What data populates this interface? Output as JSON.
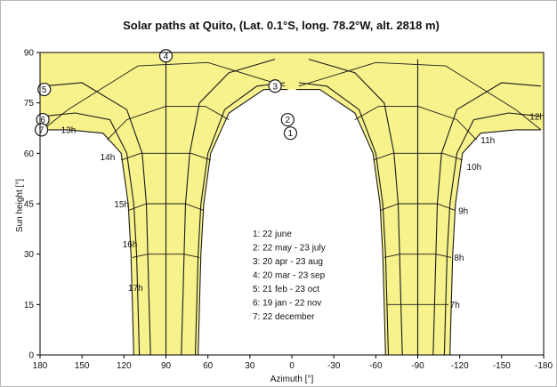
{
  "chart_data": {
    "type": "line",
    "title": "Solar paths at    Quito, (Lat. 0.1°S, long. 78.2°W, alt. 2818 m)",
    "xlabel": "Azimuth [°]",
    "ylabel": "Sun height [°]",
    "xlim": [
      180,
      -180
    ],
    "ylim": [
      0,
      90
    ],
    "x_ticks": [
      180,
      150,
      120,
      90,
      60,
      30,
      0,
      -30,
      -60,
      -90,
      -120,
      -150,
      -180
    ],
    "y_ticks": [
      0,
      15,
      30,
      45,
      60,
      75,
      90
    ],
    "grid": false,
    "legend_position": "center",
    "colors": {
      "fill": "#f7f28b",
      "line": "#1a1a1a"
    },
    "series": [
      {
        "marker": "1",
        "morning": [
          [
            67,
            0
          ],
          [
            66,
            15
          ],
          [
            65,
            30
          ],
          [
            63,
            45
          ],
          [
            58,
            60
          ],
          [
            45,
            72
          ],
          [
            20,
            79
          ],
          [
            3,
            79
          ]
        ],
        "afternoon": [
          [
            -67,
            0
          ],
          [
            -66,
            15
          ],
          [
            -65,
            30
          ],
          [
            -63,
            45
          ],
          [
            -58,
            60
          ],
          [
            -45,
            72
          ],
          [
            -20,
            79
          ],
          [
            -3,
            79
          ]
        ]
      },
      {
        "marker": "2",
        "morning": [
          [
            69,
            0
          ],
          [
            68,
            15
          ],
          [
            67,
            30
          ],
          [
            65,
            45
          ],
          [
            60,
            60
          ],
          [
            48,
            73
          ],
          [
            25,
            80
          ],
          [
            5,
            81
          ]
        ],
        "afternoon": [
          [
            -69,
            0
          ],
          [
            -68,
            15
          ],
          [
            -67,
            30
          ],
          [
            -65,
            45
          ],
          [
            -60,
            60
          ],
          [
            -48,
            73
          ],
          [
            -25,
            80
          ],
          [
            -5,
            81
          ]
        ]
      },
      {
        "marker": "3",
        "morning": [
          [
            79,
            0
          ],
          [
            78,
            15
          ],
          [
            77,
            30
          ],
          [
            76,
            45
          ],
          [
            73,
            60
          ],
          [
            66,
            75
          ],
          [
            45,
            84
          ],
          [
            12,
            88
          ]
        ],
        "afternoon": [
          [
            -79,
            0
          ],
          [
            -78,
            15
          ],
          [
            -77,
            30
          ],
          [
            -76,
            45
          ],
          [
            -73,
            60
          ],
          [
            -66,
            75
          ],
          [
            -45,
            84
          ],
          [
            -12,
            88
          ]
        ]
      },
      {
        "marker": "4",
        "morning": [
          [
            90,
            0
          ],
          [
            90,
            15
          ],
          [
            90,
            30
          ],
          [
            90,
            45
          ],
          [
            90,
            60
          ],
          [
            90,
            75
          ],
          [
            90,
            88
          ]
        ],
        "afternoon": [
          [
            -90,
            0
          ],
          [
            -90,
            15
          ],
          [
            -90,
            30
          ],
          [
            -90,
            45
          ],
          [
            -90,
            60
          ],
          [
            -90,
            75
          ],
          [
            -90,
            88
          ]
        ]
      },
      {
        "marker": "5",
        "morning": [
          [
            101,
            0
          ],
          [
            102,
            15
          ],
          [
            103,
            30
          ],
          [
            104,
            45
          ],
          [
            107,
            60
          ],
          [
            118,
            73
          ],
          [
            150,
            81
          ],
          [
            178,
            80
          ]
        ],
        "afternoon": [
          [
            -101,
            0
          ],
          [
            -102,
            15
          ],
          [
            -103,
            30
          ],
          [
            -104,
            45
          ],
          [
            -107,
            60
          ],
          [
            -118,
            73
          ],
          [
            -150,
            81
          ],
          [
            -178,
            80
          ]
        ]
      },
      {
        "marker": "6",
        "morning": [
          [
            109,
            0
          ],
          [
            110,
            15
          ],
          [
            111,
            30
          ],
          [
            113,
            45
          ],
          [
            118,
            60
          ],
          [
            130,
            70
          ],
          [
            155,
            72
          ],
          [
            178,
            71
          ]
        ],
        "afternoon": [
          [
            -109,
            0
          ],
          [
            -110,
            15
          ],
          [
            -111,
            30
          ],
          [
            -113,
            45
          ],
          [
            -118,
            60
          ],
          [
            -130,
            70
          ],
          [
            -155,
            72
          ],
          [
            -178,
            71
          ]
        ]
      },
      {
        "marker": "7",
        "morning": [
          [
            113,
            0
          ],
          [
            114,
            15
          ],
          [
            115,
            30
          ],
          [
            117,
            45
          ],
          [
            122,
            60
          ],
          [
            135,
            66
          ],
          [
            160,
            67
          ],
          [
            178,
            67
          ]
        ],
        "afternoon": [
          [
            -113,
            0
          ],
          [
            -114,
            15
          ],
          [
            -115,
            30
          ],
          [
            -117,
            45
          ],
          [
            -122,
            60
          ],
          [
            -135,
            66
          ],
          [
            -160,
            67
          ],
          [
            -178,
            67
          ]
        ]
      }
    ],
    "hour_lines": [
      {
        "label": "7h",
        "points": [
          [
            -112,
            15
          ],
          [
            -101,
            15
          ],
          [
            -90,
            15
          ],
          [
            -79,
            15
          ],
          [
            -68,
            15
          ]
        ]
      },
      {
        "label": "8h",
        "points": [
          [
            -114,
            29
          ],
          [
            -103,
            30
          ],
          [
            -90,
            30
          ],
          [
            -77,
            30
          ],
          [
            -66,
            29
          ]
        ]
      },
      {
        "label": "9h",
        "points": [
          [
            -117,
            43
          ],
          [
            -104,
            45
          ],
          [
            -90,
            45
          ],
          [
            -76,
            45
          ],
          [
            -63,
            43
          ]
        ]
      },
      {
        "label": "10h",
        "points": [
          [
            -122,
            58
          ],
          [
            -108,
            60
          ],
          [
            -90,
            60
          ],
          [
            -72,
            60
          ],
          [
            -58,
            58
          ]
        ]
      },
      {
        "label": "11h",
        "points": [
          [
            -132,
            64
          ],
          [
            -118,
            70
          ],
          [
            -90,
            74
          ],
          [
            -62,
            74
          ],
          [
            -45,
            70
          ]
        ]
      },
      {
        "label": "12h",
        "points": [
          [
            -178,
            67
          ],
          [
            -160,
            73
          ],
          [
            -110,
            86
          ],
          [
            -60,
            87
          ],
          [
            -5,
            80
          ]
        ]
      },
      {
        "label": "13h",
        "points": [
          [
            178,
            67
          ],
          [
            160,
            73
          ],
          [
            110,
            86
          ],
          [
            60,
            87
          ],
          [
            5,
            80
          ]
        ]
      },
      {
        "label": "14h",
        "points": [
          [
            132,
            64
          ],
          [
            118,
            70
          ],
          [
            90,
            74
          ],
          [
            62,
            74
          ],
          [
            45,
            70
          ]
        ]
      },
      {
        "label": "15h",
        "points": [
          [
            122,
            58
          ],
          [
            108,
            60
          ],
          [
            90,
            60
          ],
          [
            72,
            60
          ],
          [
            58,
            58
          ]
        ]
      },
      {
        "label": "16h",
        "points": [
          [
            117,
            43
          ],
          [
            104,
            45
          ],
          [
            90,
            45
          ],
          [
            76,
            45
          ],
          [
            63,
            43
          ]
        ]
      },
      {
        "label": "17h",
        "points": [
          [
            114,
            29
          ],
          [
            103,
            30
          ],
          [
            90,
            30
          ],
          [
            77,
            30
          ],
          [
            66,
            29
          ]
        ]
      }
    ],
    "hour_labels": [
      {
        "label": "7h",
        "x": -113,
        "y": 14
      },
      {
        "label": "8h",
        "x": -116,
        "y": 28
      },
      {
        "label": "9h",
        "x": -119,
        "y": 42
      },
      {
        "label": "10h",
        "x": -125,
        "y": 55
      },
      {
        "label": "11h",
        "x": -135,
        "y": 63
      },
      {
        "label": "12h",
        "x": -170,
        "y": 70
      },
      {
        "label": "13h",
        "x": 165,
        "y": 66
      },
      {
        "label": "14h",
        "x": 137,
        "y": 58
      },
      {
        "label": "15h",
        "x": 127,
        "y": 44
      },
      {
        "label": "16h",
        "x": 121,
        "y": 32
      },
      {
        "label": "17h",
        "x": 117,
        "y": 19
      }
    ],
    "markers": [
      {
        "label": "1",
        "x": 1,
        "y": 66
      },
      {
        "label": "2",
        "x": 3,
        "y": 70
      },
      {
        "label": "3",
        "x": 12,
        "y": 80
      },
      {
        "label": "4",
        "x": 90,
        "y": 89
      },
      {
        "label": "5",
        "x": 177,
        "y": 79
      },
      {
        "label": "6",
        "x": 178,
        "y": 70
      },
      {
        "label": "7",
        "x": 179,
        "y": 67
      }
    ],
    "legend": [
      "1: 22 june",
      "2: 22 may - 23 july",
      "3: 20 apr - 23 aug",
      "4: 20 mar - 23 sep",
      "5: 21 feb - 23 oct",
      "6: 19 jan - 22 nov",
      "7: 22 december"
    ]
  }
}
